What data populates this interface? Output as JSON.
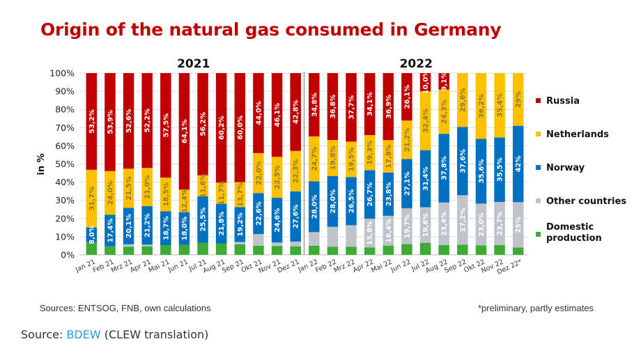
{
  "colors": {
    "russia": "#c00000",
    "netherlands": "#ffc000",
    "norway": "#0070c0",
    "other": "#bfc4cb",
    "domestic": "#3eab34",
    "title": "#c00000",
    "link": "#2a9fd6"
  },
  "chart_data": {
    "type": "bar",
    "stacked": true,
    "title": "Origin of the natural gas consumed in Germany",
    "xlabel": "",
    "ylabel": "in %",
    "ylim": [
      0,
      100
    ],
    "yticks": [
      "0%",
      "10%",
      "20%",
      "30%",
      "40%",
      "50%",
      "60%",
      "70%",
      "80%",
      "90%",
      "100%"
    ],
    "grid": true,
    "legend_position": "right",
    "groups": [
      {
        "label": "2021",
        "start": 0,
        "end": 11
      },
      {
        "label": "2022",
        "start": 12,
        "end": 23
      }
    ],
    "categories": [
      "Jan 21",
      "Feb 21",
      "Mrz 21",
      "Apr 21",
      "Mai 21",
      "Jun 21",
      "Jul 21",
      "Aug 21",
      "Sep 21",
      "Okt 21",
      "Nov 21",
      "Dez 21",
      "Jan 22",
      "Feb 22",
      "Mrz 22",
      "Apr 22",
      "Mai 22",
      "Jun 22",
      "Jul 22",
      "Aug 22",
      "Sep 22",
      "Okt 22",
      "Nov 22",
      "Dez 22*"
    ],
    "series": [
      {
        "name": "Domestic production",
        "key": "domestic",
        "values": [
          7.1,
          4.7,
          4.5,
          4.6,
          5.3,
          5.5,
          6.7,
          6.3,
          5.8,
          5.0,
          4.9,
          4.7,
          5.0,
          4.4,
          4.5,
          4.1,
          5.1,
          5.9,
          6.6,
          5.4,
          5.6,
          5.2,
          5.4,
          4.0
        ],
        "labels": [
          "",
          "",
          "",
          "",
          "",
          "",
          "",
          "",
          "",
          "",
          "",
          "",
          "",
          "",
          "",
          "",
          "",
          "",
          "",
          "",
          "",
          "",
          "",
          ""
        ]
      },
      {
        "name": "Other countries",
        "key": "other",
        "values": [
          0,
          0,
          1.3,
          1.0,
          0,
          0,
          0,
          0,
          1.3,
          6.4,
          1.9,
          2.6,
          7.5,
          11.0,
          11.8,
          15.8,
          16.4,
          19.7,
          19.6,
          23.4,
          27.2,
          23.0,
          23.7,
          25
        ],
        "labels": [
          "",
          "",
          "",
          "",
          "",
          "",
          "",
          "",
          "",
          "",
          "",
          "",
          "",
          "",
          "",
          "15,8%",
          "16,4%",
          "19,7%",
          "19,6%",
          "23,4%",
          "27,2%",
          "23,0%",
          "23,7%",
          "25%"
        ]
      },
      {
        "name": "Norway",
        "key": "norway",
        "values": [
          8.0,
          17.4,
          20.1,
          21.2,
          18.7,
          18.0,
          25.5,
          21.8,
          19.2,
          22.6,
          24.6,
          27.6,
          28.0,
          28.0,
          26.5,
          26.7,
          23.8,
          27.1,
          31.4,
          37.8,
          37.6,
          35.6,
          35.5,
          42
        ],
        "labels": [
          "8,0%",
          "17,4%",
          "20,1%",
          "21,2%",
          "18,7%",
          "18,0%",
          "25,5%",
          "21,8%",
          "19,2%",
          "22,6%",
          "24,6%",
          "27,6%",
          "28,0%",
          "28,0%",
          "26,5%",
          "26,7%",
          "23,8%",
          "27,1%",
          "31,4%",
          "37,8%",
          "37,6%",
          "35,6%",
          "35,5%",
          "42%"
        ]
      },
      {
        "name": "Netherlands",
        "key": "netherlands",
        "values": [
          31.7,
          24.0,
          21.5,
          21.0,
          18.5,
          12.4,
          11.6,
          11.7,
          13.7,
          22.0,
          22.5,
          22.3,
          24.7,
          19.8,
          19.5,
          19.3,
          17.8,
          21.2,
          32.4,
          24.3,
          29.6,
          36.2,
          35.4,
          29
        ],
        "labels": [
          "31,7%",
          "24,0%",
          "21,5%",
          "21,0%",
          "18,5%",
          "12,4%",
          "11,6%",
          "11,7%",
          "13,7%",
          "22,0%",
          "22,5%",
          "22,3%",
          "24,7%",
          "19,8%",
          "19,5%",
          "19,3%",
          "17,8%",
          "21,2%",
          "32,4%",
          "24,3%",
          "29,6%",
          "36,2%",
          "35,4%",
          "29%"
        ]
      },
      {
        "name": "Russia",
        "key": "russia",
        "values": [
          53.2,
          53.9,
          52.6,
          52.2,
          57.5,
          64.1,
          56.2,
          60.2,
          60.0,
          44.0,
          46.1,
          42.8,
          34.8,
          36.8,
          37.7,
          34.1,
          36.9,
          26.1,
          10.0,
          9.1,
          0,
          0,
          0,
          0
        ],
        "labels": [
          "53,2%",
          "53,9%",
          "52,6%",
          "52,2%",
          "57,5%",
          "64,1%",
          "56,2%",
          "60,2%",
          "60,0%",
          "44,0%",
          "46,1%",
          "42,8%",
          "34,8%",
          "36,8%",
          "37,7%",
          "34,1%",
          "36,9%",
          "26,1%",
          "10,0%",
          "9,1%",
          "",
          "",
          "",
          ""
        ]
      }
    ],
    "legend": [
      "Russia",
      "Netherlands",
      "Norway",
      "Other countries",
      "Domestic production"
    ]
  },
  "notes": {
    "sources": "Sources: ENTSOG, FNB, own calculations",
    "preliminary": "*preliminary, partly estimates"
  },
  "source_line": {
    "prefix": "Source: ",
    "link_text": "BDEW",
    "suffix": " (CLEW translation)"
  }
}
